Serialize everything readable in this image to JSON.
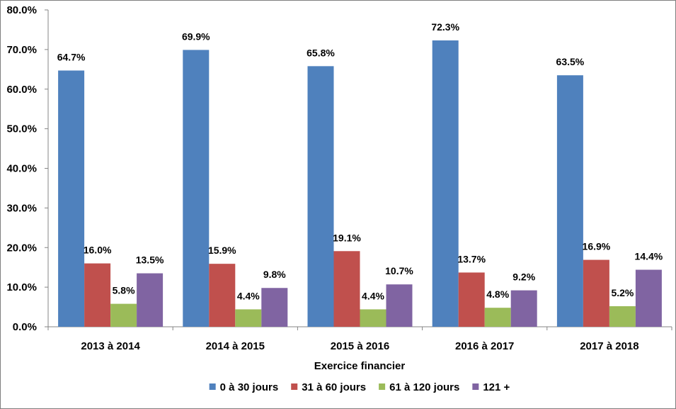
{
  "chart_data": {
    "type": "bar",
    "title": "",
    "xlabel": "Exercice financier",
    "ylabel": "",
    "ylim": [
      0,
      80
    ],
    "y_ticks": [
      "0.0%",
      "10.0%",
      "20.0%",
      "30.0%",
      "40.0%",
      "50.0%",
      "60.0%",
      "70.0%",
      "80.0%"
    ],
    "categories": [
      "2013 à 2014",
      "2014 à 2015",
      "2015 à 2016",
      "2016 à 2017",
      "2017 à 2018"
    ],
    "series": [
      {
        "name": "0 à 30 jours",
        "color": "#4F81BD",
        "values": [
          64.7,
          69.9,
          65.8,
          72.3,
          63.5
        ],
        "labels": [
          "64.7%",
          "69.9%",
          "65.8%",
          "72.3%",
          "63.5%"
        ]
      },
      {
        "name": "31 à 60 jours",
        "color": "#C0504D",
        "values": [
          16.0,
          15.9,
          19.1,
          13.7,
          16.9
        ],
        "labels": [
          "16.0%",
          "15.9%",
          "19.1%",
          "13.7%",
          "16.9%"
        ]
      },
      {
        "name": "61 à 120 jours",
        "color": "#9BBB59",
        "values": [
          5.8,
          4.4,
          4.4,
          4.8,
          5.2
        ],
        "labels": [
          "5.8%",
          "4.4%",
          "4.4%",
          "4.8%",
          "5.2%"
        ]
      },
      {
        "name": "121 +",
        "color": "#8064A2",
        "values": [
          13.5,
          9.8,
          10.7,
          9.2,
          14.4
        ],
        "labels": [
          "13.5%",
          "9.8%",
          "10.7%",
          "9.2%",
          "14.4%"
        ]
      }
    ],
    "legend_position": "bottom",
    "grid": false
  }
}
